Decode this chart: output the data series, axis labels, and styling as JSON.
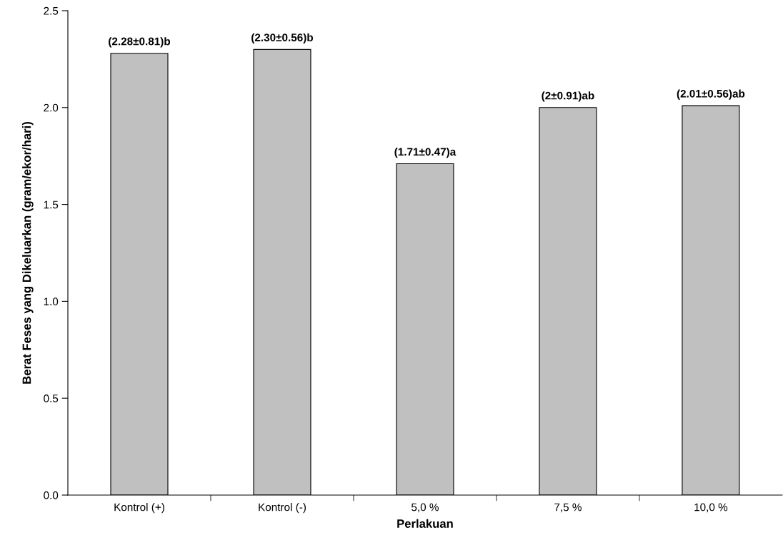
{
  "chart_data": {
    "type": "bar",
    "xlabel": "Perlakuan",
    "ylabel": "Berat Feses yang Dikeluarkan (gram/ekor/hari)",
    "categories": [
      "Kontrol (+)",
      "Kontrol (-)",
      "5,0 %",
      "7,5 %",
      "10,0 %"
    ],
    "values": [
      2.28,
      2.3,
      1.71,
      2.0,
      2.01
    ],
    "value_labels": [
      "(2.28±0.81)b",
      "(2.30±0.56)b",
      "(1.71±0.47)a",
      "(2±0.91)ab",
      "(2.01±0.56)ab"
    ],
    "color": "#c0c0c0",
    "ylim": [
      0,
      2.5
    ],
    "yticks": [
      {
        "value": 0,
        "label": "0.0"
      },
      {
        "value": 0.5,
        "label": "0.5"
      },
      {
        "value": 1,
        "label": "1.0"
      },
      {
        "value": 1.5,
        "label": "1.5"
      },
      {
        "value": 2,
        "label": "2.0"
      },
      {
        "value": 2.5,
        "label": "2.5"
      }
    ],
    "grid": false,
    "legend": false
  }
}
